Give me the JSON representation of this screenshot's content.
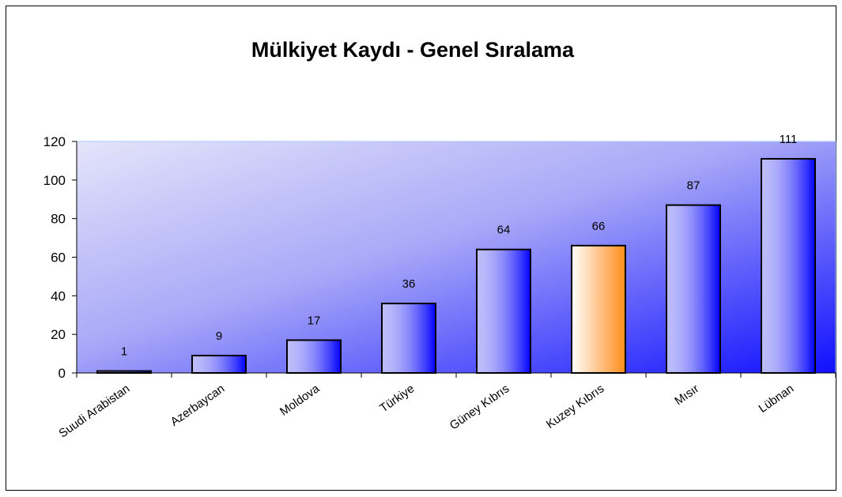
{
  "chart_data": {
    "type": "bar",
    "title": "Mülkiyet Kaydı - Genel Sıralama",
    "categories": [
      "Suudi Arabistan",
      "Azerbaycan",
      "Moldova",
      "Türkiye",
      "Güney Kıbrıs",
      "Kuzey Kıbrıs",
      "Mısır",
      "Lübnan"
    ],
    "values": [
      1,
      9,
      17,
      36,
      64,
      66,
      87,
      111
    ],
    "colors": [
      "#0000ff",
      "#0000ff",
      "#0000ff",
      "#0000ff",
      "#0000ff",
      "#ff8c1a",
      "#0000ff",
      "#0000ff"
    ],
    "ylim": [
      0,
      120
    ],
    "yticks": [
      0,
      20,
      40,
      60,
      80,
      100,
      120
    ]
  }
}
